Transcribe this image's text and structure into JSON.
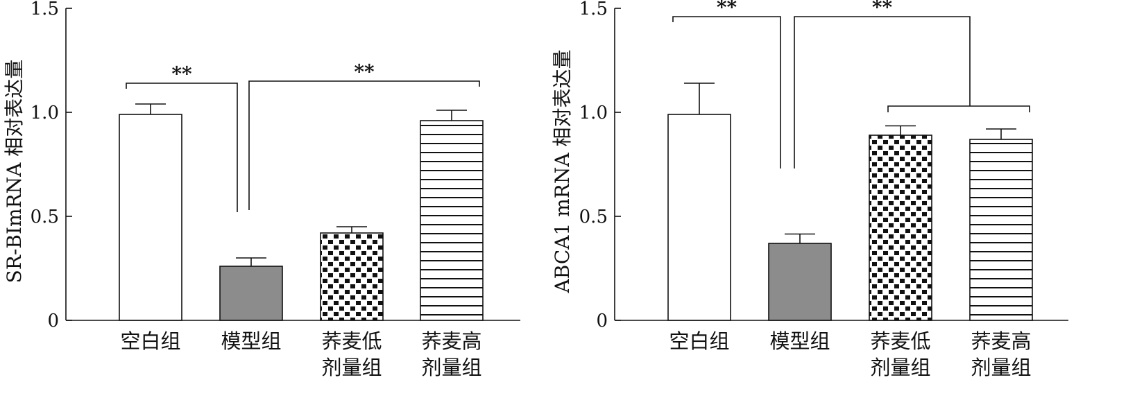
{
  "chart_data": [
    {
      "type": "bar",
      "ylabel": "SR-BImRNA 相对表达量",
      "ylim": [
        0,
        1.5
      ],
      "yticks": [
        {
          "value": 0,
          "label": "0"
        },
        {
          "value": 0.5,
          "label": "0.5"
        },
        {
          "value": 1.0,
          "label": "1.0"
        },
        {
          "value": 1.5,
          "label": "1.5"
        }
      ],
      "categories": [
        [
          "空白组"
        ],
        [
          "模型组"
        ],
        [
          "荞麦低",
          "剂量组"
        ],
        [
          "荞麦高",
          "剂量组"
        ]
      ],
      "values": [
        0.99,
        0.26,
        0.42,
        0.96
      ],
      "errors": [
        0.05,
        0.04,
        0.03,
        0.05
      ],
      "fills": [
        "white",
        "gray",
        "checker",
        "hlines"
      ],
      "brackets": [
        {
          "left": [
            0
          ],
          "right": [
            1
          ],
          "label": "**",
          "y": 1.14
        },
        {
          "left": [
            1
          ],
          "right": [
            3
          ],
          "label": "**",
          "y": 1.15
        }
      ]
    },
    {
      "type": "bar",
      "ylabel": "ABCA1 mRNA 相对表达量",
      "ylim": [
        0,
        1.5
      ],
      "yticks": [
        {
          "value": 0,
          "label": "0"
        },
        {
          "value": 0.5,
          "label": "0.5"
        },
        {
          "value": 1.0,
          "label": "1.0"
        },
        {
          "value": 1.5,
          "label": "1.5"
        }
      ],
      "categories": [
        [
          "空白组"
        ],
        [
          "模型组"
        ],
        [
          "荞麦低",
          "剂量组"
        ],
        [
          "荞麦高",
          "剂量组"
        ]
      ],
      "values": [
        0.99,
        0.37,
        0.89,
        0.87
      ],
      "errors": [
        0.15,
        0.045,
        0.045,
        0.05
      ],
      "fills": [
        "white",
        "gray",
        "checker",
        "hlines"
      ],
      "brackets": [
        {
          "left": [
            0
          ],
          "right": [
            1
          ],
          "label": "**",
          "y": 1.46
        },
        {
          "left": [
            1
          ],
          "right": [
            2,
            3
          ],
          "label": "**",
          "y": 1.46
        }
      ]
    }
  ],
  "colors": {
    "axis": "#111111",
    "bar_gray": "#8c8c8c",
    "bar_white": "#ffffff",
    "pattern_ink": "#111111"
  }
}
